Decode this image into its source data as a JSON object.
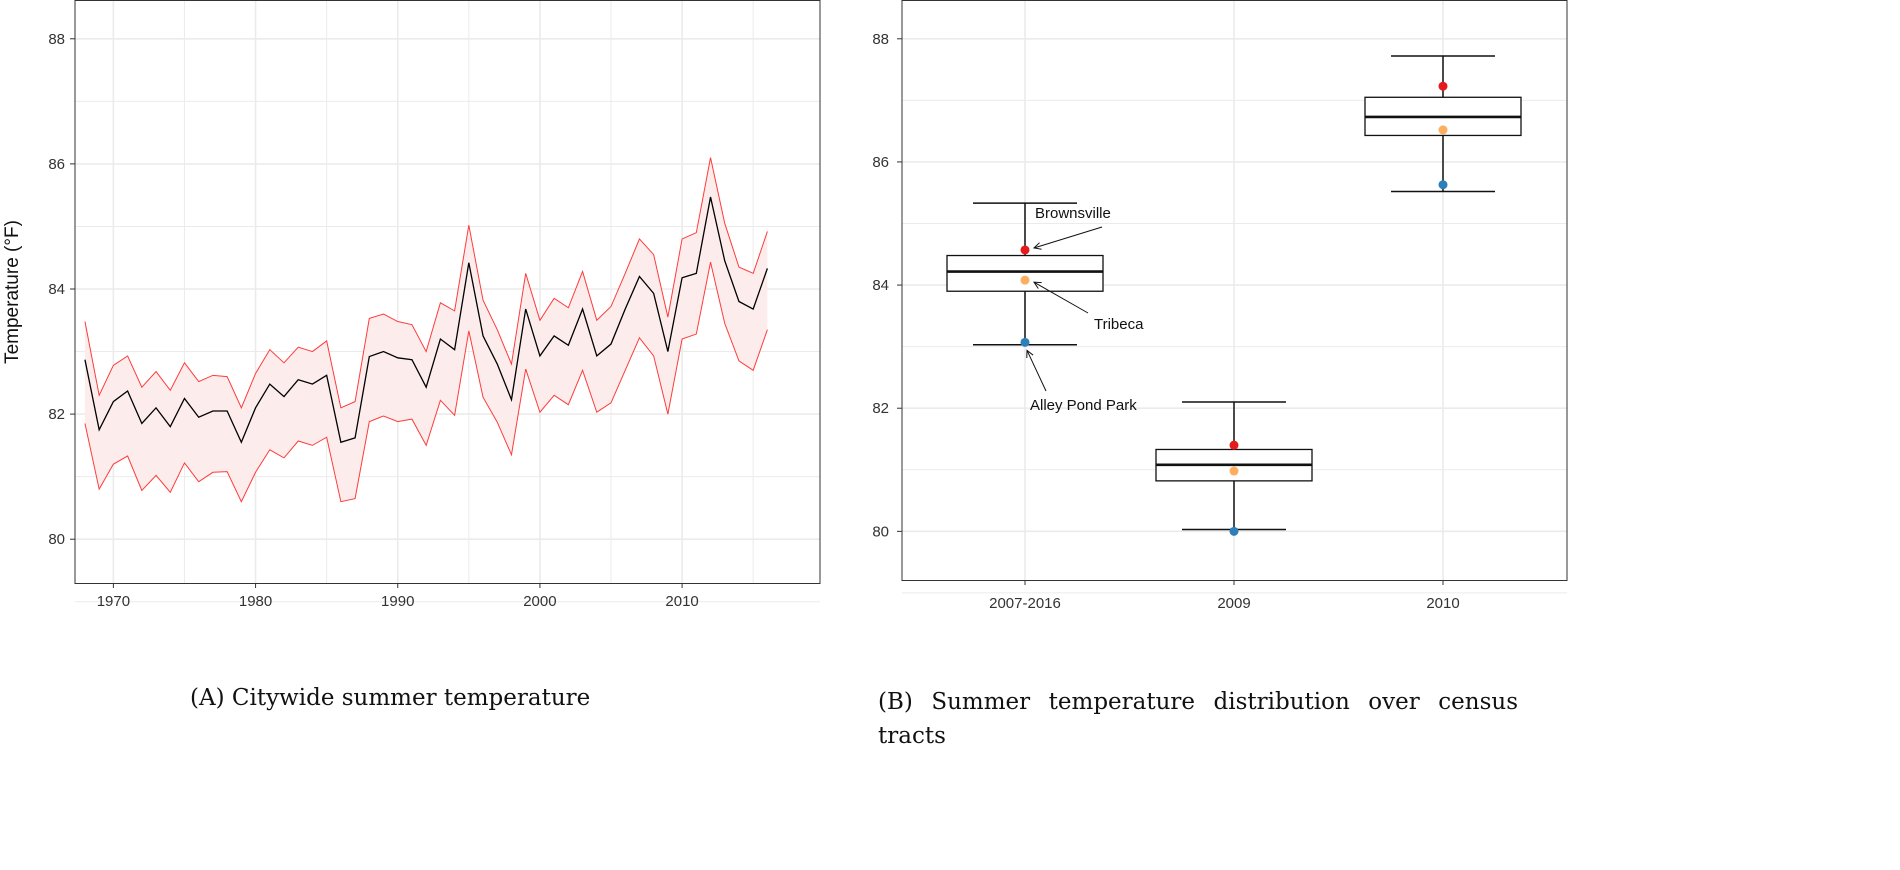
{
  "chart_data": [
    {
      "type": "line",
      "panel": "A",
      "caption": "(A) Citywide summer temperature",
      "ylabel": "Temperature (°F)",
      "xlabel": "",
      "xlim": [
        1967.3,
        2019.7
      ],
      "ylim": [
        79.3,
        88.62
      ],
      "xticks": [
        1970,
        1980,
        1990,
        2000,
        2010
      ],
      "yticks": [
        80,
        82,
        84,
        86,
        88
      ],
      "grid": true,
      "x": [
        1968,
        1969,
        1970,
        1971,
        1972,
        1973,
        1974,
        1975,
        1976,
        1977,
        1978,
        1979,
        1980,
        1981,
        1982,
        1983,
        1984,
        1985,
        1986,
        1987,
        1988,
        1989,
        1990,
        1991,
        1992,
        1993,
        1994,
        1995,
        1996,
        1997,
        1998,
        1999,
        2000,
        2001,
        2002,
        2003,
        2004,
        2005,
        2006,
        2007,
        2008,
        2009,
        2010,
        2011,
        2012,
        2013,
        2014,
        2015,
        2016
      ],
      "mean": [
        82.87,
        81.75,
        82.2,
        82.37,
        81.85,
        82.1,
        81.8,
        82.25,
        81.95,
        82.05,
        82.05,
        81.55,
        82.1,
        82.48,
        82.28,
        82.55,
        82.48,
        82.62,
        81.55,
        81.62,
        82.92,
        83.0,
        82.9,
        82.87,
        82.43,
        83.2,
        83.03,
        84.42,
        83.25,
        82.8,
        82.23,
        83.68,
        82.93,
        83.25,
        83.1,
        83.68,
        82.93,
        83.12,
        83.68,
        84.2,
        83.93,
        83.0,
        84.18,
        84.25,
        85.47,
        84.45,
        83.8,
        83.68,
        84.33
      ],
      "upper": [
        83.48,
        82.3,
        82.78,
        82.93,
        82.43,
        82.68,
        82.38,
        82.82,
        82.52,
        82.62,
        82.6,
        82.1,
        82.65,
        83.03,
        82.82,
        83.07,
        83.0,
        83.17,
        82.1,
        82.2,
        83.53,
        83.6,
        83.48,
        83.43,
        83.0,
        83.78,
        83.65,
        85.02,
        83.82,
        83.35,
        82.8,
        84.25,
        83.5,
        83.85,
        83.7,
        84.28,
        83.5,
        83.72,
        84.25,
        84.8,
        84.55,
        83.55,
        84.8,
        84.9,
        86.1,
        85.05,
        84.35,
        84.25,
        84.92
      ],
      "lower": [
        81.85,
        80.8,
        81.2,
        81.33,
        80.78,
        81.02,
        80.75,
        81.22,
        80.92,
        81.07,
        81.08,
        80.6,
        81.07,
        81.43,
        81.3,
        81.57,
        81.5,
        81.63,
        80.6,
        80.65,
        81.88,
        81.97,
        81.88,
        81.92,
        81.5,
        82.22,
        81.98,
        83.33,
        82.27,
        81.87,
        81.35,
        82.72,
        82.03,
        82.3,
        82.15,
        82.7,
        82.03,
        82.18,
        82.7,
        83.22,
        82.93,
        82.0,
        83.2,
        83.28,
        84.43,
        83.45,
        82.85,
        82.7,
        83.35
      ],
      "colors": {
        "mean": "#000000",
        "band_line": "#ff3b3b",
        "band_fill": "#fcecec"
      }
    },
    {
      "type": "box",
      "panel": "B",
      "caption": "(B) Summer temperature distribution over census tracts",
      "ylim": [
        79.21,
        88.63
      ],
      "yticks": [
        80,
        82,
        84,
        86,
        88
      ],
      "grid": true,
      "categories": [
        "2007-2016",
        "2009",
        "2010"
      ],
      "boxes": [
        {
          "whisker_low": 83.03,
          "q1": 83.9,
          "median": 84.22,
          "q3": 84.48,
          "whisker_high": 85.33
        },
        {
          "whisker_low": 80.03,
          "q1": 80.82,
          "median": 81.08,
          "q3": 81.33,
          "whisker_high": 82.1
        },
        {
          "whisker_low": 85.52,
          "q1": 86.43,
          "median": 86.73,
          "q3": 87.05,
          "whisker_high": 87.72
        }
      ],
      "points": [
        {
          "name": "Brownsville",
          "color": "#e41a1c",
          "values": [
            84.57,
            81.4,
            87.23
          ]
        },
        {
          "name": "Tribeca",
          "color": "#fdae61",
          "values": [
            84.08,
            80.98,
            86.52
          ]
        },
        {
          "name": "Alley Pond Park",
          "color": "#2c7fb8",
          "values": [
            83.07,
            80.0,
            85.63
          ]
        }
      ],
      "annotations": [
        "Brownsville",
        "Tribeca",
        "Alley Pond Park"
      ]
    }
  ]
}
